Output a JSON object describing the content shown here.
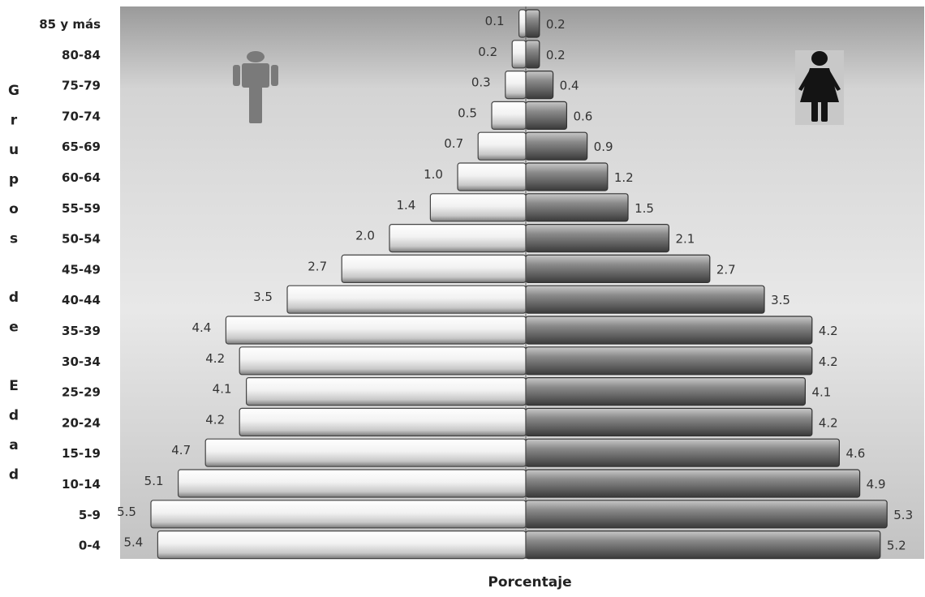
{
  "chart_data": {
    "type": "bar",
    "orientation": "horizontal-population-pyramid",
    "categories": [
      "85 y más",
      "80-84",
      "75-79",
      "70-74",
      "65-69",
      "60-64",
      "55-59",
      "50-54",
      "45-49",
      "40-44",
      "35-39",
      "30-34",
      "25-29",
      "20-24",
      "15-19",
      "10-14",
      "5-9",
      "0-4"
    ],
    "series": [
      {
        "side": "left",
        "color": "#e6e6e6",
        "values": [
          0.1,
          0.2,
          0.3,
          0.5,
          0.7,
          1.0,
          1.4,
          2.0,
          2.7,
          3.5,
          4.4,
          4.2,
          4.1,
          4.2,
          4.7,
          5.1,
          5.5,
          5.4
        ]
      },
      {
        "side": "right",
        "color": "#6e6e6e",
        "values": [
          0.2,
          0.2,
          0.4,
          0.6,
          0.9,
          1.2,
          1.5,
          2.1,
          2.7,
          3.5,
          4.2,
          4.2,
          4.1,
          4.2,
          4.6,
          4.9,
          5.3,
          5.2
        ]
      }
    ],
    "value_labels": {
      "left": [
        "0.1",
        "0.2",
        "0.3",
        "0.5",
        "0.7",
        "1.0",
        "1.4",
        "2.0",
        "2.7",
        "3.5",
        "4.4",
        "4.2",
        "4.1",
        "4.2",
        "4.7",
        "5.1",
        "5.5",
        "5.4"
      ],
      "right": [
        "0.2",
        "0.2",
        "0.4",
        "0.6",
        "0.9",
        "1.2",
        "1.5",
        "2.1",
        "2.7",
        "3.5",
        "4.2",
        "4.2",
        "4.1",
        "4.2",
        "4.6",
        "4.9",
        "5.3",
        "5.2"
      ]
    },
    "ylabel": "Grupos de Edad",
    "xlabel": "Porcentaje",
    "xlim": [
      -5.5,
      5.5
    ],
    "icons": [
      "male-figure-icon",
      "female-figure-icon"
    ],
    "grid": false
  }
}
